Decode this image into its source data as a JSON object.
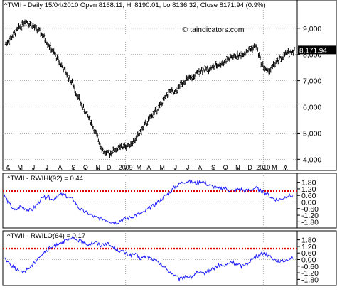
{
  "chart_data": [
    {
      "type": "bar",
      "subtype": "ohlc",
      "title": "^TWII - Daily 15/04/2010 Open 8168.11, Hi 8190.01, Lo 8136.32, Close 8171.94 (0.9%)",
      "watermark": "© taindicators.com",
      "last_value_label": "8,171.94",
      "ylim": [
        3900,
        9700
      ],
      "yticks": [
        4000,
        5000,
        6000,
        7000,
        8000,
        9000
      ],
      "ytick_labels": [
        "4,000",
        "5,000",
        "6,000",
        "7,000",
        "8,000",
        "9,000"
      ],
      "xticks": [
        {
          "pos": 0.01,
          "label": "A"
        },
        {
          "pos": 0.065,
          "label": "M"
        },
        {
          "pos": 0.125,
          "label": "J"
        },
        {
          "pos": 0.185,
          "label": "J"
        },
        {
          "pos": 0.245,
          "label": "A"
        },
        {
          "pos": 0.305,
          "label": "S"
        },
        {
          "pos": 0.36,
          "label": "O"
        },
        {
          "pos": 0.415,
          "label": "N"
        },
        {
          "pos": 0.465,
          "label": "D"
        },
        {
          "pos": 0.54,
          "label": "2009"
        },
        {
          "pos": 0.6,
          "label": "M"
        },
        {
          "pos": 0.645,
          "label": "A"
        },
        {
          "pos": 0.705,
          "label": "M"
        },
        {
          "pos": 0.765,
          "label": "J"
        },
        {
          "pos": 0.82,
          "label": "J"
        },
        {
          "pos": 0.875,
          "label": "A"
        },
        {
          "pos": 0.935,
          "label": "S"
        },
        {
          "pos": 0.99,
          "label": "O"
        },
        {
          "pos": 1.045,
          "label": "N"
        },
        {
          "pos": 1.1,
          "label": "D"
        },
        {
          "pos": 1.16,
          "label": "2010"
        },
        {
          "pos": 1.21,
          "label": "M"
        },
        {
          "pos": 1.26,
          "label": "A"
        }
      ],
      "anchors": [
        [
          0,
          8400
        ],
        [
          0.05,
          8900
        ],
        [
          0.09,
          9300
        ],
        [
          0.12,
          9100
        ],
        [
          0.16,
          8800
        ],
        [
          0.2,
          8300
        ],
        [
          0.25,
          7600
        ],
        [
          0.3,
          6900
        ],
        [
          0.34,
          6100
        ],
        [
          0.38,
          5500
        ],
        [
          0.41,
          4900
        ],
        [
          0.44,
          4300
        ],
        [
          0.46,
          4200
        ],
        [
          0.5,
          4400
        ],
        [
          0.54,
          4500
        ],
        [
          0.58,
          4700
        ],
        [
          0.62,
          5200
        ],
        [
          0.66,
          5700
        ],
        [
          0.7,
          6100
        ],
        [
          0.74,
          6600
        ],
        [
          0.76,
          6500
        ],
        [
          0.8,
          7000
        ],
        [
          0.84,
          7100
        ],
        [
          0.88,
          7400
        ],
        [
          0.93,
          7500
        ],
        [
          0.98,
          7700
        ],
        [
          1.02,
          7900
        ],
        [
          1.06,
          8000
        ],
        [
          1.1,
          8200
        ],
        [
          1.13,
          8300
        ],
        [
          1.15,
          7700
        ],
        [
          1.18,
          7300
        ],
        [
          1.22,
          7700
        ],
        [
          1.26,
          8000
        ],
        [
          1.3,
          8170
        ]
      ]
    },
    {
      "type": "line",
      "title": "^TWII - RWIHI(92) = 0.44",
      "ylim": [
        -2.1,
        2.1
      ],
      "yticks": [
        1.8,
        1.2,
        0.6,
        0.0,
        -0.6,
        -1.2,
        -1.8
      ],
      "ytick_labels": [
        "1.80",
        "1.20",
        "0.60",
        "0.00",
        "-0.60",
        "-1.20",
        "-1.80"
      ],
      "ref_line": 1.0,
      "series": [
        {
          "values": [
            0.6,
            -0.2,
            -0.8,
            -0.4,
            -0.6,
            -0.8,
            -0.3,
            0.3,
            0.5,
            0.2,
            0.6,
            0.7,
            0.4,
            0.2,
            -0.6,
            -0.9,
            -1.1,
            -1.4,
            -1.5,
            -1.6,
            -1.8,
            -1.9,
            -1.6,
            -1.5,
            -1.3,
            -1.1,
            -1.0,
            -0.6,
            -0.3,
            0.1,
            0.5,
            0.9,
            1.4,
            1.7,
            1.9,
            1.8,
            1.7,
            1.9,
            1.6,
            1.4,
            1.2,
            1.3,
            1.1,
            1.0,
            1.2,
            1.0,
            1.1,
            1.3,
            1.0,
            0.8,
            0.4,
            0.2,
            0.3,
            0.6,
            0.5
          ]
        }
      ]
    },
    {
      "type": "line",
      "title": "^TWII - RWILO(64) = 0.17",
      "ylim": [
        -2.1,
        2.1
      ],
      "yticks": [
        1.8,
        1.2,
        0.6,
        0.0,
        -0.6,
        -1.2,
        -1.8
      ],
      "ytick_labels": [
        "1.80",
        "1.20",
        "0.60",
        "0.00",
        "-0.60",
        "-1.20",
        "-1.80"
      ],
      "ref_line": 1.0,
      "series": [
        {
          "values": [
            0.2,
            -0.4,
            -0.8,
            -1.2,
            -0.9,
            -0.5,
            0.2,
            0.6,
            1.0,
            1.3,
            1.6,
            1.7,
            1.9,
            1.8,
            1.5,
            1.4,
            1.6,
            1.3,
            1.5,
            1.2,
            0.9,
            0.7,
            0.4,
            0.5,
            0.1,
            0.3,
            0.1,
            -0.2,
            -0.6,
            -1.0,
            -1.4,
            -1.8,
            -1.5,
            -1.6,
            -1.2,
            -1.3,
            -1.0,
            -0.8,
            -0.5,
            -0.6,
            -0.2,
            -0.4,
            -0.6,
            -0.3,
            0.1,
            0.4,
            0.6,
            0.3,
            -0.1,
            -0.2,
            0.0,
            0.2
          ]
        }
      ]
    }
  ]
}
